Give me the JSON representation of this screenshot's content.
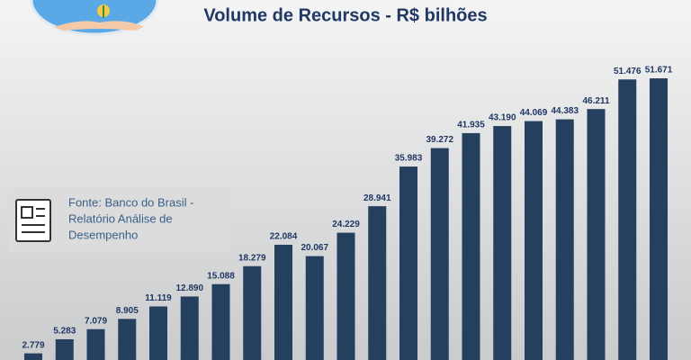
{
  "chart_data": {
    "type": "bar",
    "title": "Volume de Recursos - R$ bilhões",
    "values": [
      2.779,
      5.283,
      7.079,
      8.905,
      11.119,
      12.89,
      15.088,
      18.279,
      22.084,
      20.067,
      24.229,
      28.941,
      35.983,
      39.272,
      41.935,
      43.19,
      44.069,
      44.383,
      46.211,
      51.476,
      51.671
    ],
    "value_labels": [
      "2.779",
      "5.283",
      "7.079",
      "8.905",
      "11.119",
      "12.890",
      "15.088",
      "18.279",
      "22.084",
      "20.067",
      "24.229",
      "28.941",
      "35.983",
      "39.272",
      "41.935",
      "43.190",
      "44.069",
      "44.383",
      "46.211",
      "51.476",
      "51.671"
    ],
    "color": "#253f5f",
    "source": [
      "Fonte: Banco do Brasil -",
      "Relatório Análise de",
      "Desempenho"
    ]
  }
}
